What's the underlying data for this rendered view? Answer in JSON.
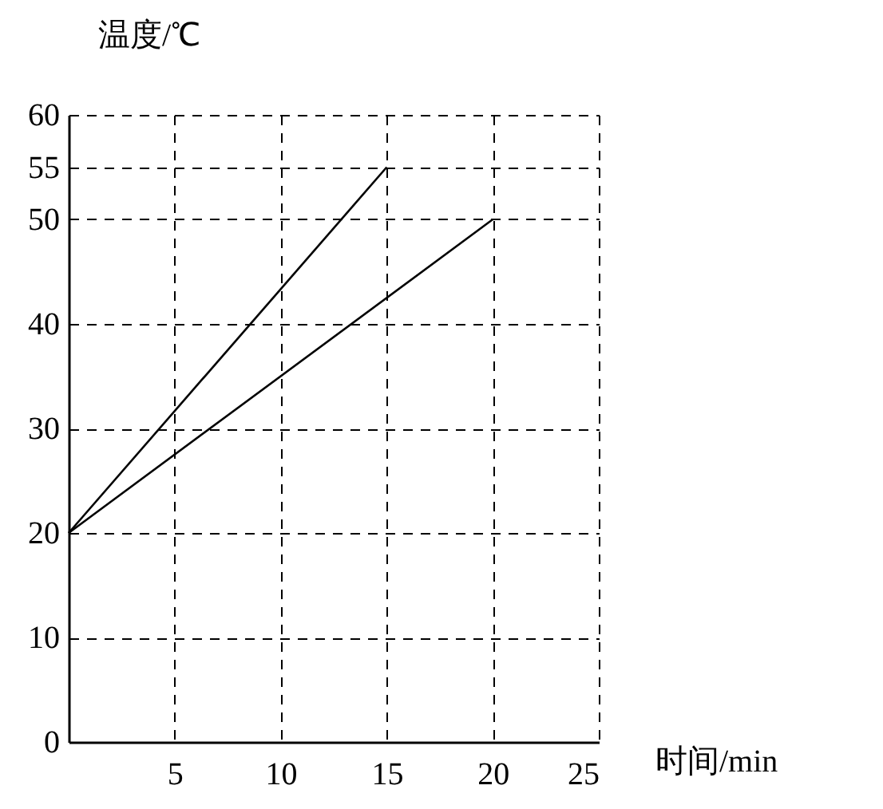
{
  "chart_data": {
    "type": "line",
    "xlabel": "时间/min",
    "ylabel": "温度/℃",
    "xlim": [
      0,
      25
    ],
    "xticks": [
      5,
      10,
      15,
      20,
      25
    ],
    "ylim": [
      0,
      60
    ],
    "yticks": [
      0,
      10,
      20,
      30,
      40,
      50,
      55,
      60
    ],
    "grid": true,
    "line_style": "solid",
    "marker": "none",
    "series": [
      {
        "color": "#000000",
        "x": [
          0,
          15
        ],
        "values": [
          20,
          55
        ]
      },
      {
        "color": "#000000",
        "x": [
          0,
          20
        ],
        "values": [
          20,
          50
        ]
      }
    ]
  }
}
